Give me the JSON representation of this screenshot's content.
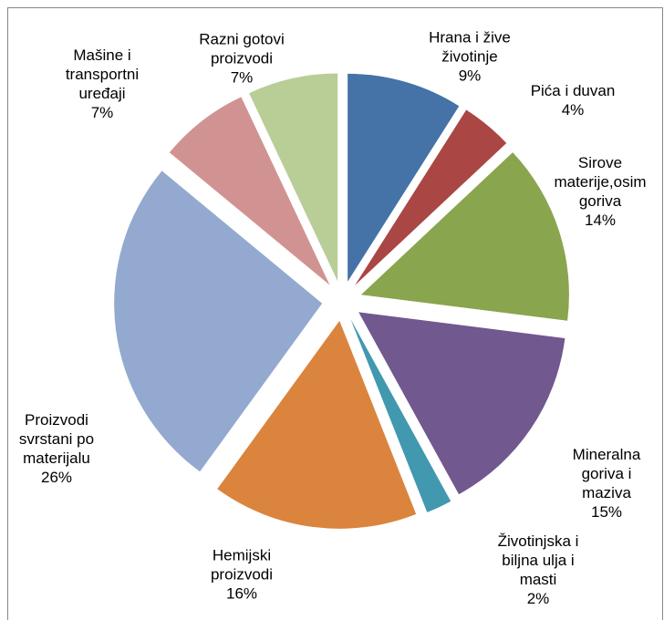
{
  "chart_data": {
    "type": "pie",
    "categories": [
      "Hrana i žive životinje",
      "Pića i duvan",
      "Sirove materije,osim goriva",
      "Mineralna goriva i maziva",
      "Životinjska i biljna ulja i masti",
      "Hemijski proizvodi",
      "Proizvodi svrstani po materijalu",
      "Mašine i transportni uređaji",
      "Razni gotovi proizvodi"
    ],
    "values": [
      9,
      4,
      14,
      15,
      2,
      16,
      26,
      7,
      7
    ],
    "value_labels": [
      "9%",
      "4%",
      "14%",
      "15%",
      "2%",
      "16%",
      "26%",
      "7%",
      "7%"
    ],
    "colors": [
      "#4572a7",
      "#aa4643",
      "#89a54e",
      "#71588f",
      "#4198af",
      "#db843d",
      "#93a9cf",
      "#d19392",
      "#b9cd96"
    ],
    "exploded": true
  }
}
